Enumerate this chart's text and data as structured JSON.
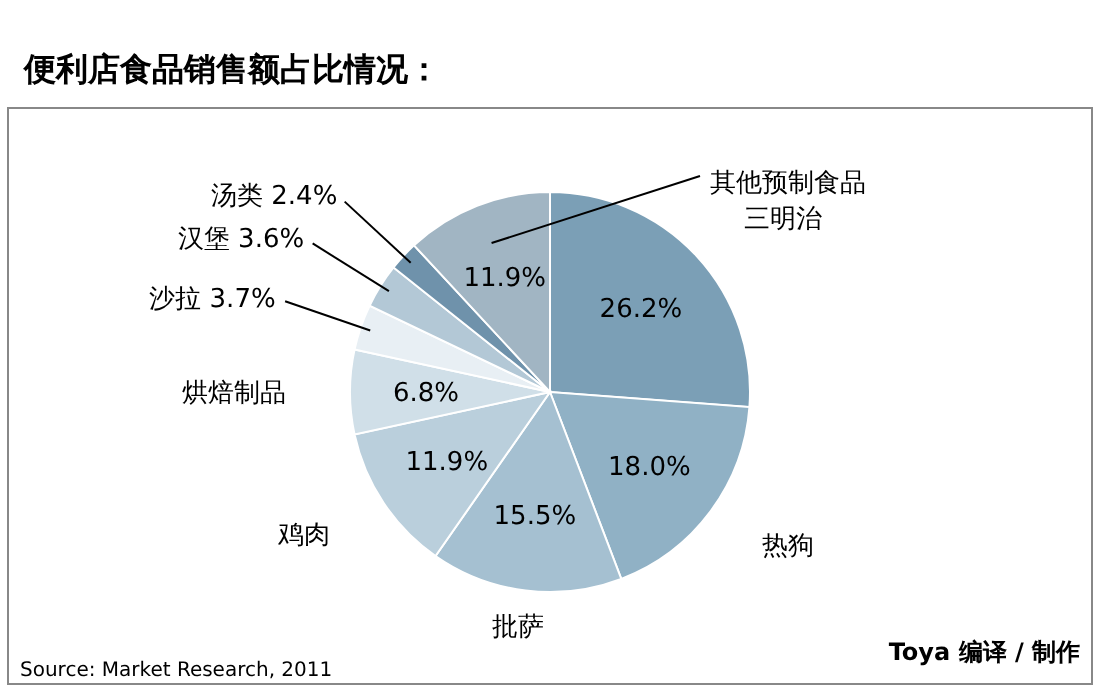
{
  "chart_data": {
    "type": "pie",
    "title": "便利店食品销售额占比情况：",
    "categories": [
      "三明治",
      "热狗",
      "批萨",
      "鸡肉",
      "烘焙制品",
      "沙拉",
      "汉堡",
      "汤类",
      "其他预制食品"
    ],
    "values": [
      26.2,
      18.0,
      15.5,
      11.9,
      6.8,
      3.7,
      3.6,
      2.4,
      11.9
    ],
    "colors": [
      "#7b9fb6",
      "#90b1c5",
      "#a5c0d1",
      "#bacfdc",
      "#d0dfe8",
      "#e8eff4",
      "#b3c8d6",
      "#6f92ab",
      "#a1b5c3"
    ],
    "value_labels": [
      "26.2%",
      "18.0%",
      "15.5%",
      "11.9%",
      "6.8%",
      "3.7%",
      "3.6%",
      "2.4%",
      "11.9%"
    ],
    "annotations": [
      "Source: Market Research, 2011",
      "Toya 编译 / 制作"
    ]
  }
}
